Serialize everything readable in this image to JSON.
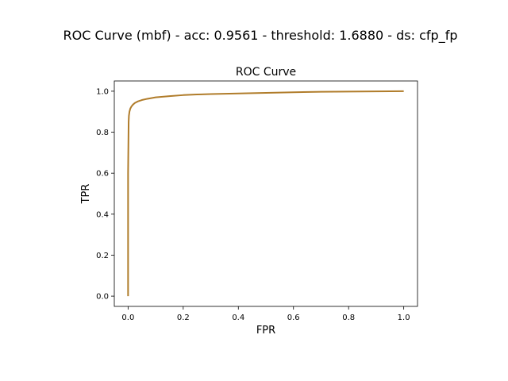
{
  "figure": {
    "suptitle": "ROC Curve (mbf) - acc: 0.9561 - threshold: 1.6880 - ds: cfp_fp"
  },
  "chart_data": {
    "type": "line",
    "title": "ROC Curve",
    "xlabel": "FPR",
    "ylabel": "TPR",
    "xlim": [
      -0.05,
      1.05
    ],
    "ylim": [
      -0.05,
      1.05
    ],
    "xticks": [
      "0.0",
      "0.2",
      "0.4",
      "0.6",
      "0.8",
      "1.0"
    ],
    "yticks": [
      "0.0",
      "0.2",
      "0.4",
      "0.6",
      "0.8",
      "1.0"
    ],
    "grid": false,
    "series": [
      {
        "color": "#b07c2a",
        "x": [
          0.0,
          0.0,
          0.002,
          0.003,
          0.005,
          0.008,
          0.012,
          0.018,
          0.025,
          0.035,
          0.05,
          0.07,
          0.1,
          0.15,
          0.2,
          0.25,
          0.3,
          0.4,
          0.5,
          0.6,
          0.7,
          0.8,
          0.9,
          1.0
        ],
        "y": [
          0.0,
          0.6,
          0.85,
          0.88,
          0.9,
          0.915,
          0.925,
          0.935,
          0.943,
          0.95,
          0.957,
          0.963,
          0.97,
          0.976,
          0.981,
          0.984,
          0.986,
          0.989,
          0.992,
          0.995,
          0.997,
          0.998,
          0.999,
          1.0
        ]
      }
    ]
  }
}
